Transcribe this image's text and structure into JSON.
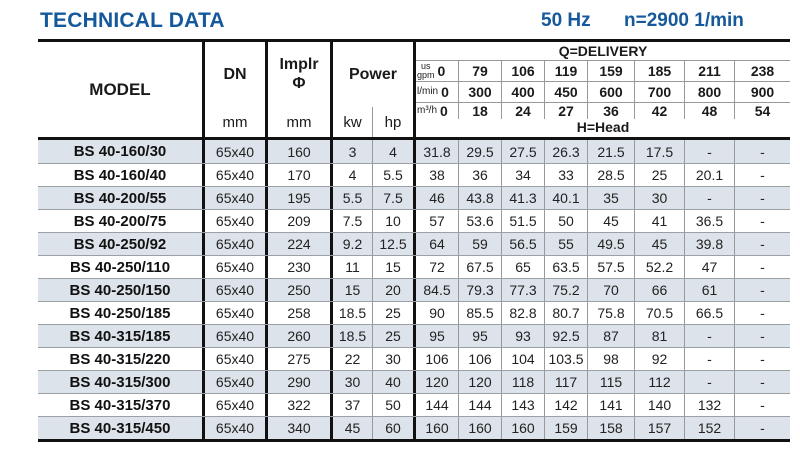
{
  "header": {
    "title": "TECHNICAL DATA",
    "frequency": "50 Hz",
    "speed": "n=2900 1/min"
  },
  "table": {
    "model_header": "MODEL",
    "dn_header": "DN",
    "implr_header_line1": "Implr",
    "implr_header_line2": "Φ",
    "power_header": "Power",
    "dn_unit": "mm",
    "implr_unit": "mm",
    "kw_unit": "kw",
    "hp_unit": "hp",
    "delivery_title": "Q=DELIVERY",
    "head_title": "H=Head",
    "flow_rows": [
      {
        "unit_prefix": "us",
        "unit": "gpm",
        "values": [
          "0",
          "79",
          "106",
          "119",
          "159",
          "185",
          "211",
          "238"
        ]
      },
      {
        "unit_prefix": "",
        "unit": "l/min",
        "values": [
          "0",
          "300",
          "400",
          "450",
          "600",
          "700",
          "800",
          "900"
        ]
      },
      {
        "unit_prefix": "",
        "unit": "m³/h",
        "values": [
          "0",
          "18",
          "24",
          "27",
          "36",
          "42",
          "48",
          "54"
        ]
      }
    ],
    "rows": [
      {
        "model": "BS 40-160/30",
        "dn": "65x40",
        "implr": "160",
        "kw": "3",
        "hp": "4",
        "head": [
          "31.8",
          "29.5",
          "27.5",
          "26.3",
          "21.5",
          "17.5",
          "-",
          "-"
        ]
      },
      {
        "model": "BS 40-160/40",
        "dn": "65x40",
        "implr": "170",
        "kw": "4",
        "hp": "5.5",
        "head": [
          "38",
          "36",
          "34",
          "33",
          "28.5",
          "25",
          "20.1",
          "-"
        ]
      },
      {
        "model": "BS 40-200/55",
        "dn": "65x40",
        "implr": "195",
        "kw": "5.5",
        "hp": "7.5",
        "head": [
          "46",
          "43.8",
          "41.3",
          "40.1",
          "35",
          "30",
          "-",
          "-"
        ]
      },
      {
        "model": "BS 40-200/75",
        "dn": "65x40",
        "implr": "209",
        "kw": "7.5",
        "hp": "10",
        "head": [
          "57",
          "53.6",
          "51.5",
          "50",
          "45",
          "41",
          "36.5",
          "-"
        ]
      },
      {
        "model": "BS 40-250/92",
        "dn": "65x40",
        "implr": "224",
        "kw": "9.2",
        "hp": "12.5",
        "head": [
          "64",
          "59",
          "56.5",
          "55",
          "49.5",
          "45",
          "39.8",
          "-"
        ]
      },
      {
        "model": "BS 40-250/110",
        "dn": "65x40",
        "implr": "230",
        "kw": "11",
        "hp": "15",
        "head": [
          "72",
          "67.5",
          "65",
          "63.5",
          "57.5",
          "52.2",
          "47",
          "-"
        ]
      },
      {
        "model": "BS 40-250/150",
        "dn": "65x40",
        "implr": "250",
        "kw": "15",
        "hp": "20",
        "head": [
          "84.5",
          "79.3",
          "77.3",
          "75.2",
          "70",
          "66",
          "61",
          "-"
        ]
      },
      {
        "model": "BS 40-250/185",
        "dn": "65x40",
        "implr": "258",
        "kw": "18.5",
        "hp": "25",
        "head": [
          "90",
          "85.5",
          "82.8",
          "80.7",
          "75.8",
          "70.5",
          "66.5",
          "-"
        ]
      },
      {
        "model": "BS 40-315/185",
        "dn": "65x40",
        "implr": "260",
        "kw": "18.5",
        "hp": "25",
        "head": [
          "95",
          "95",
          "93",
          "92.5",
          "87",
          "81",
          "-",
          "-"
        ]
      },
      {
        "model": "BS 40-315/220",
        "dn": "65x40",
        "implr": "275",
        "kw": "22",
        "hp": "30",
        "head": [
          "106",
          "106",
          "104",
          "103.5",
          "98",
          "92",
          "-",
          "-"
        ]
      },
      {
        "model": "BS 40-315/300",
        "dn": "65x40",
        "implr": "290",
        "kw": "30",
        "hp": "40",
        "head": [
          "120",
          "120",
          "118",
          "117",
          "115",
          "112",
          "-",
          "-"
        ]
      },
      {
        "model": "BS 40-315/370",
        "dn": "65x40",
        "implr": "322",
        "kw": "37",
        "hp": "50",
        "head": [
          "144",
          "144",
          "143",
          "142",
          "141",
          "140",
          "132",
          "-"
        ]
      },
      {
        "model": "BS 40-315/450",
        "dn": "65x40",
        "implr": "340",
        "kw": "45",
        "hp": "60",
        "head": [
          "160",
          "160",
          "160",
          "159",
          "158",
          "157",
          "152",
          "-"
        ]
      }
    ]
  },
  "colors": {
    "accent_blue": "#15599c",
    "row_shade": "#dce3ea",
    "thick_border": "#111111",
    "thin_line": "#999999"
  }
}
